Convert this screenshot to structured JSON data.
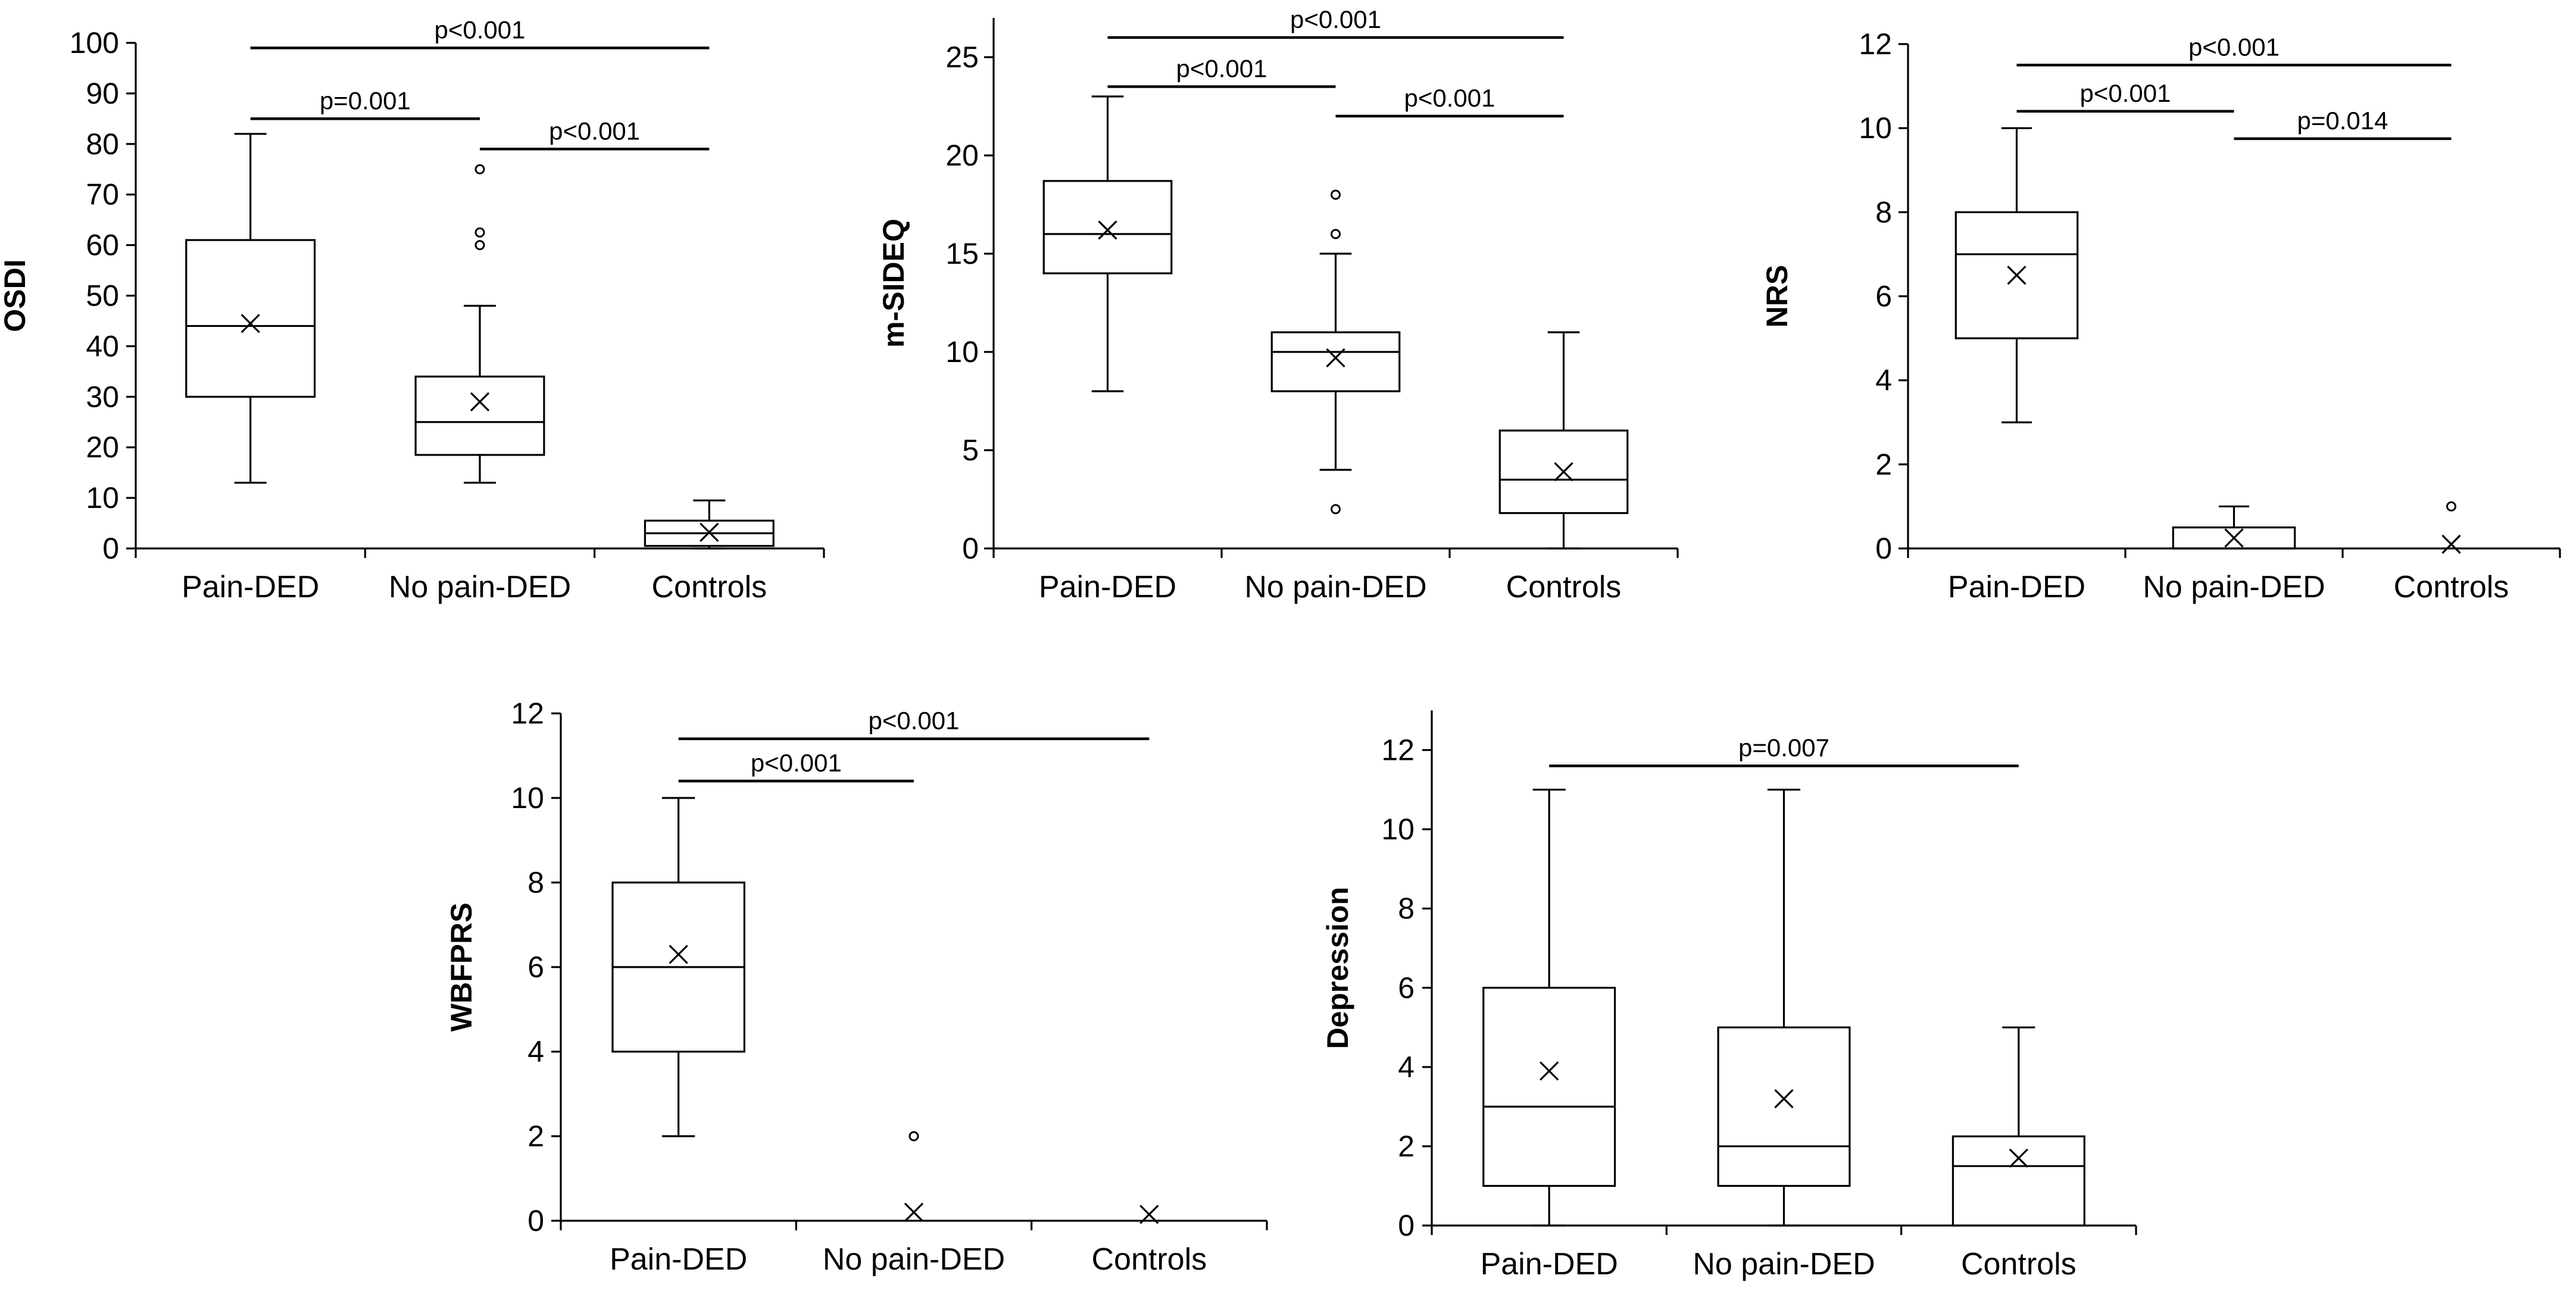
{
  "chart_data": [
    {
      "type": "box",
      "ylabel": "OSDI",
      "categories": [
        "Pain-DED",
        "No pain-DED",
        "Controls"
      ],
      "ylim": [
        0,
        100
      ],
      "yticks": [
        0,
        10,
        20,
        30,
        40,
        50,
        60,
        70,
        80,
        90,
        100
      ],
      "boxes": [
        {
          "min": 13,
          "q1": 30,
          "median": 44,
          "q3": 61,
          "max": 82,
          "mean": 44.5,
          "outliers": []
        },
        {
          "min": 13,
          "q1": 18.5,
          "median": 25,
          "q3": 34,
          "max": 48,
          "mean": 29,
          "outliers": [
            60,
            62.5,
            75
          ]
        },
        {
          "min": 0,
          "q1": 0.5,
          "median": 3,
          "q3": 5.5,
          "max": 9.5,
          "mean": 3.2,
          "outliers": []
        }
      ],
      "comparisons": [
        {
          "from": 0,
          "to": 2,
          "label": "p<0.001",
          "level": 99
        },
        {
          "from": 0,
          "to": 1,
          "label": "p=0.001",
          "level": 85
        },
        {
          "from": 1,
          "to": 2,
          "label": "p<0.001",
          "level": 79
        }
      ]
    },
    {
      "type": "box",
      "ylabel": "m-SIDEQ",
      "categories": [
        "Pain-DED",
        "No pain-DED",
        "Controls"
      ],
      "ylim": [
        0,
        27
      ],
      "yticks": [
        0,
        5,
        10,
        15,
        20,
        25
      ],
      "boxes": [
        {
          "min": 8,
          "q1": 14,
          "median": 16,
          "q3": 18.7,
          "max": 23,
          "mean": 16.2,
          "outliers": []
        },
        {
          "min": 4,
          "q1": 8,
          "median": 10,
          "q3": 11,
          "max": 15,
          "mean": 9.7,
          "outliers": [
            2,
            16,
            18
          ]
        },
        {
          "min": 0,
          "q1": 1.8,
          "median": 3.5,
          "q3": 6,
          "max": 11,
          "mean": 3.9,
          "outliers": []
        }
      ],
      "comparisons": [
        {
          "from": 0,
          "to": 2,
          "label": "p<0.001",
          "level": 26
        },
        {
          "from": 0,
          "to": 1,
          "label": "p<0.001",
          "level": 23.5
        },
        {
          "from": 1,
          "to": 2,
          "label": "p<0.001",
          "level": 22
        }
      ]
    },
    {
      "type": "box",
      "ylabel": "NRS",
      "categories": [
        "Pain-DED",
        "No pain-DED",
        "Controls"
      ],
      "ylim": [
        0,
        12
      ],
      "yticks": [
        0,
        2,
        4,
        6,
        8,
        10,
        12
      ],
      "boxes": [
        {
          "min": 3,
          "q1": 5,
          "median": 7,
          "q3": 8,
          "max": 10,
          "mean": 6.5,
          "outliers": []
        },
        {
          "min": 0,
          "q1": 0,
          "median": 0,
          "q3": 0.5,
          "max": 1,
          "mean": 0.25,
          "outliers": []
        },
        {
          "min": 0,
          "q1": 0,
          "median": 0,
          "q3": 0,
          "max": 0,
          "mean": 0.1,
          "outliers": [
            1
          ]
        }
      ],
      "comparisons": [
        {
          "from": 0,
          "to": 2,
          "label": "p<0.001",
          "level": 11.5
        },
        {
          "from": 0,
          "to": 1,
          "label": "p<0.001",
          "level": 10.4
        },
        {
          "from": 1,
          "to": 2,
          "label": "p=0.014",
          "level": 9.75
        }
      ]
    },
    {
      "type": "box",
      "ylabel": "WBFPRS",
      "categories": [
        "Pain-DED",
        "No pain-DED",
        "Controls"
      ],
      "ylim": [
        0,
        12
      ],
      "yticks": [
        0,
        2,
        4,
        6,
        8,
        10,
        12
      ],
      "boxes": [
        {
          "min": 2,
          "q1": 4,
          "median": 6,
          "q3": 8,
          "max": 10,
          "mean": 6.3,
          "outliers": []
        },
        {
          "min": 0,
          "q1": 0,
          "median": 0,
          "q3": 0,
          "max": 0,
          "mean": 0.2,
          "outliers": [
            2
          ]
        },
        {
          "min": 0,
          "q1": 0,
          "median": 0,
          "q3": 0,
          "max": 0,
          "mean": 0.15,
          "outliers": []
        }
      ],
      "comparisons": [
        {
          "from": 0,
          "to": 2,
          "label": "p<0.001",
          "level": 11.4
        },
        {
          "from": 0,
          "to": 1,
          "label": "p<0.001",
          "level": 10.4
        }
      ]
    },
    {
      "type": "box",
      "ylabel": "Depression",
      "categories": [
        "Pain-DED",
        "No pain-DED",
        "Controls"
      ],
      "ylim": [
        0,
        13
      ],
      "yticks": [
        0,
        2,
        4,
        6,
        8,
        10,
        12
      ],
      "boxes": [
        {
          "min": 0,
          "q1": 1,
          "median": 3,
          "q3": 6,
          "max": 11,
          "mean": 3.9,
          "outliers": []
        },
        {
          "min": 0,
          "q1": 1,
          "median": 2,
          "q3": 5,
          "max": 11,
          "mean": 3.2,
          "outliers": []
        },
        {
          "min": 0,
          "q1": 0,
          "median": 1.5,
          "q3": 2.25,
          "max": 5,
          "mean": 1.7,
          "outliers": []
        }
      ],
      "comparisons": [
        {
          "from": 0,
          "to": 2,
          "label": "p=0.007",
          "level": 11.6
        }
      ]
    }
  ]
}
